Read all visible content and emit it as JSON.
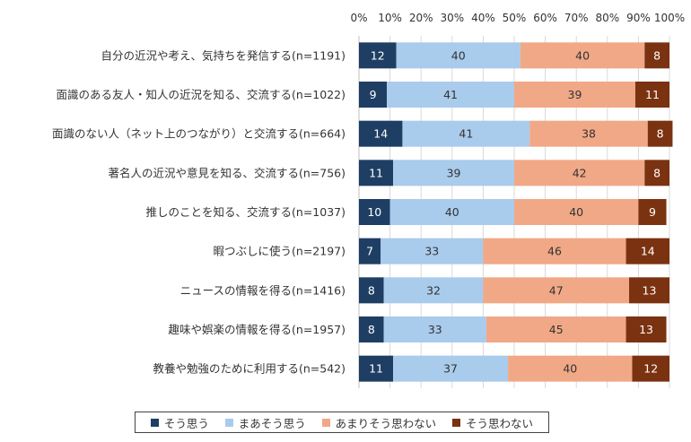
{
  "chart_data": {
    "type": "bar",
    "orientation": "horizontal",
    "stacked": "percent",
    "xlim": [
      0,
      100
    ],
    "x_ticks": [
      "0%",
      "10%",
      "20%",
      "30%",
      "40%",
      "50%",
      "60%",
      "70%",
      "80%",
      "90%",
      "100%"
    ],
    "categories": [
      "自分の近況や考え、気持ちを発信する(n=1191)",
      "面識のある友人・知人の近況を知る、交流する(n=1022)",
      "面識のない人（ネット上のつながり）と交流する(n=664)",
      "著名人の近況や意見を知る、交流する(n=756)",
      "推しのことを知る、交流する(n=1037)",
      "暇つぶしに使う(n=2197)",
      "ニュースの情報を得る(n=1416)",
      "趣味や娯楽の情報を得る(n=1957)",
      "教養や勉強のために利用する(n=542)"
    ],
    "series": [
      {
        "name": "そう思う",
        "color": "#1f3e64",
        "label_color": "#ffffff",
        "values": [
          12,
          9,
          14,
          11,
          10,
          7,
          8,
          8,
          11
        ]
      },
      {
        "name": "まあそう思う",
        "color": "#a9cbec",
        "label_color": "#333333",
        "values": [
          40,
          41,
          41,
          39,
          40,
          33,
          32,
          33,
          37
        ]
      },
      {
        "name": "あまりそう思わない",
        "color": "#f1a886",
        "label_color": "#333333",
        "values": [
          40,
          39,
          38,
          42,
          40,
          46,
          47,
          45,
          40
        ]
      },
      {
        "name": "そう思わない",
        "color": "#7b3210",
        "label_color": "#ffffff",
        "values": [
          8,
          11,
          8,
          8,
          9,
          14,
          13,
          13,
          12
        ]
      }
    ],
    "grid": true,
    "legend_position": "bottom"
  }
}
